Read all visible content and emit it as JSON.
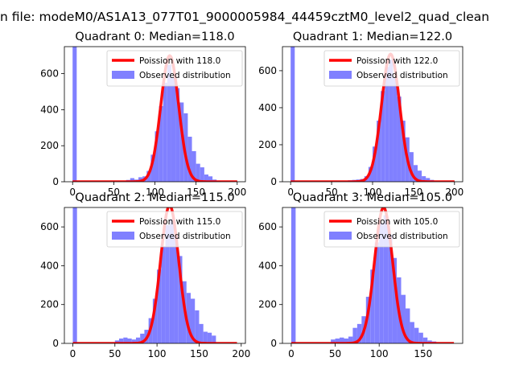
{
  "figure": {
    "suptitle": "n file: modeM0/AS1A13_077T01_9000005984_44459cztM0_level2_quad_clean",
    "colors": {
      "fit_line": "#ff0000",
      "histogram": "#8080ff",
      "axes": "#000000"
    }
  },
  "chart_data": [
    {
      "type": "bar",
      "title": "Quadrant 0: Median=118.0",
      "xlabel": "",
      "ylabel": "",
      "xlim": [
        -10,
        210
      ],
      "ylim": [
        0,
        750
      ],
      "xticks": [
        0,
        50,
        100,
        150,
        200
      ],
      "yticks": [
        0,
        200,
        400,
        600
      ],
      "grid": false,
      "legend_position": "top-right",
      "series": [
        {
          "name": "Poission with 118.0",
          "kind": "line",
          "mean": 118.0,
          "peak": 700
        },
        {
          "name": "Observed distribution",
          "kind": "histogram",
          "bin_width": 5,
          "bins": [
            [
              0,
              750
            ],
            [
              65,
              10
            ],
            [
              70,
              20
            ],
            [
              75,
              12
            ],
            [
              80,
              25
            ],
            [
              85,
              30
            ],
            [
              90,
              60
            ],
            [
              95,
              150
            ],
            [
              100,
              280
            ],
            [
              105,
              420
            ],
            [
              110,
              550
            ],
            [
              115,
              650
            ],
            [
              120,
              580
            ],
            [
              125,
              520
            ],
            [
              130,
              440
            ],
            [
              135,
              380
            ],
            [
              140,
              250
            ],
            [
              145,
              170
            ],
            [
              150,
              100
            ],
            [
              155,
              80
            ],
            [
              160,
              40
            ],
            [
              165,
              30
            ],
            [
              170,
              12
            ],
            [
              175,
              5
            ]
          ]
        }
      ]
    },
    {
      "type": "bar",
      "title": "Quadrant 1: Median=122.0",
      "xlabel": "",
      "ylabel": "",
      "xlim": [
        -10,
        210
      ],
      "ylim": [
        0,
        730
      ],
      "xticks": [
        0,
        50,
        100,
        150,
        200
      ],
      "yticks": [
        0,
        200,
        400,
        600
      ],
      "grid": false,
      "legend_position": "top-right",
      "series": [
        {
          "name": "Poission with 122.0",
          "kind": "line",
          "mean": 122.0,
          "peak": 690
        },
        {
          "name": "Observed distribution",
          "kind": "histogram",
          "bin_width": 5,
          "bins": [
            [
              0,
              730
            ],
            [
              70,
              8
            ],
            [
              75,
              10
            ],
            [
              80,
              12
            ],
            [
              85,
              15
            ],
            [
              90,
              30
            ],
            [
              95,
              80
            ],
            [
              100,
              190
            ],
            [
              105,
              330
            ],
            [
              110,
              490
            ],
            [
              115,
              620
            ],
            [
              120,
              660
            ],
            [
              125,
              560
            ],
            [
              130,
              460
            ],
            [
              135,
              330
            ],
            [
              140,
              240
            ],
            [
              145,
              160
            ],
            [
              150,
              90
            ],
            [
              155,
              60
            ],
            [
              160,
              30
            ],
            [
              165,
              20
            ],
            [
              170,
              10
            ]
          ]
        }
      ]
    },
    {
      "type": "bar",
      "title": "Quadrant 2: Median=115.0",
      "xlabel": "",
      "ylabel": "",
      "xlim": [
        -10,
        205
      ],
      "ylim": [
        0,
        700
      ],
      "xticks": [
        0,
        50,
        100,
        150,
        200
      ],
      "yticks": [
        0,
        200,
        400,
        600
      ],
      "grid": false,
      "legend_position": "top-right",
      "series": [
        {
          "name": "Poission with 115.0",
          "kind": "line",
          "mean": 115.0,
          "peak": 710
        },
        {
          "name": "Observed distribution",
          "kind": "histogram",
          "bin_width": 5,
          "bins": [
            [
              0,
              700
            ],
            [
              50,
              15
            ],
            [
              55,
              25
            ],
            [
              60,
              30
            ],
            [
              65,
              25
            ],
            [
              70,
              20
            ],
            [
              75,
              30
            ],
            [
              80,
              50
            ],
            [
              85,
              70
            ],
            [
              90,
              130
            ],
            [
              95,
              230
            ],
            [
              100,
              380
            ],
            [
              105,
              500
            ],
            [
              110,
              610
            ],
            [
              115,
              640
            ],
            [
              120,
              560
            ],
            [
              125,
              450
            ],
            [
              130,
              320
            ],
            [
              135,
              260
            ],
            [
              140,
              230
            ],
            [
              145,
              170
            ],
            [
              150,
              100
            ],
            [
              155,
              60
            ],
            [
              160,
              55
            ],
            [
              165,
              40
            ]
          ]
        }
      ]
    },
    {
      "type": "bar",
      "title": "Quadrant 3: Median=105.0",
      "xlabel": "",
      "ylabel": "",
      "xlim": [
        -10,
        195
      ],
      "ylim": [
        0,
        700
      ],
      "xticks": [
        0,
        50,
        100,
        150
      ],
      "yticks": [
        0,
        200,
        400,
        600
      ],
      "grid": false,
      "legend_position": "top-right",
      "series": [
        {
          "name": "Poission with 105.0",
          "kind": "line",
          "mean": 105.0,
          "peak": 700
        },
        {
          "name": "Observed distribution",
          "kind": "histogram",
          "bin_width": 5,
          "bins": [
            [
              0,
              700
            ],
            [
              45,
              20
            ],
            [
              50,
              25
            ],
            [
              55,
              30
            ],
            [
              60,
              25
            ],
            [
              65,
              35
            ],
            [
              70,
              80
            ],
            [
              75,
              100
            ],
            [
              80,
              140
            ],
            [
              85,
              240
            ],
            [
              90,
              380
            ],
            [
              95,
              520
            ],
            [
              100,
              620
            ],
            [
              105,
              660
            ],
            [
              110,
              560
            ],
            [
              115,
              440
            ],
            [
              120,
              340
            ],
            [
              125,
              250
            ],
            [
              130,
              180
            ],
            [
              135,
              110
            ],
            [
              140,
              80
            ],
            [
              145,
              55
            ],
            [
              150,
              30
            ],
            [
              155,
              15
            ],
            [
              160,
              10
            ]
          ]
        }
      ]
    }
  ]
}
